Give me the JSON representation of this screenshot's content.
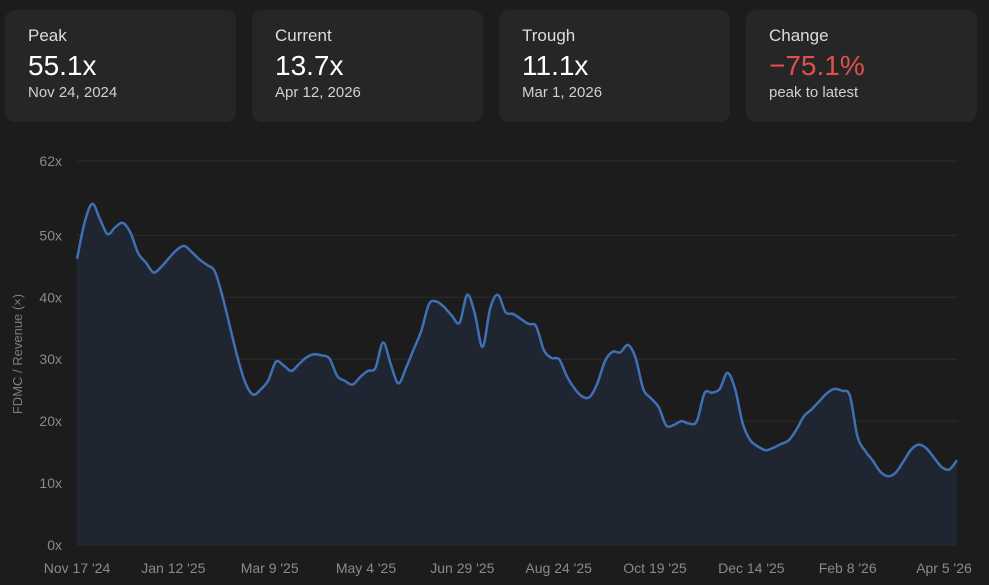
{
  "cards": [
    {
      "label": "Peak",
      "value": "55.1x",
      "sub": "Nov 24, 2024"
    },
    {
      "label": "Current",
      "value": "13.7x",
      "sub": "Apr 12, 2026"
    },
    {
      "label": "Trough",
      "value": "11.1x",
      "sub": "Mar 1, 2026"
    },
    {
      "label": "Change",
      "value": "−75.1%",
      "sub": "peak to latest"
    }
  ],
  "colors": {
    "background": "#1c1c1c",
    "card": "#262626",
    "line": "#3f6fb5",
    "area": "#202631",
    "negative": "#e0514a",
    "grid": "#2c2c2c"
  },
  "chart_data": {
    "type": "area",
    "ylabel": "FDMC / Revenue (×)",
    "ylim": [
      0,
      62
    ],
    "yticks": [
      0,
      10,
      20,
      30,
      40,
      50,
      62
    ],
    "ytick_labels": [
      "0x",
      "10x",
      "20x",
      "30x",
      "40x",
      "50x",
      "62x"
    ],
    "xtick_labels": [
      "Nov 17 '24",
      "Jan 12 '25",
      "Mar 9 '25",
      "May 4 '25",
      "Jun 29 '25",
      "Aug 24 '25",
      "Oct 19 '25",
      "Dec 14 '25",
      "Feb 8 '26",
      "Apr 5 '26"
    ],
    "grid": true,
    "series": [
      {
        "values": [
          46.2,
          52.1,
          55.1,
          52.6,
          50.2,
          51.3,
          52.0,
          50.4,
          47.1,
          45.6,
          44.0,
          44.9,
          46.3,
          47.6,
          48.3,
          47.3,
          46.1,
          45.2,
          44.2,
          40.2,
          35.2,
          30.2,
          26.2,
          24.3,
          25.1,
          26.6,
          29.6,
          29.0,
          28.1,
          29.2,
          30.3,
          30.8,
          30.6,
          30.1,
          27.3,
          26.5,
          25.9,
          27.1,
          28.1,
          28.6,
          32.7,
          29.2,
          26.1,
          28.6,
          31.6,
          34.6,
          38.9,
          39.3,
          38.4,
          37.0,
          35.9,
          40.4,
          37.3,
          32.0,
          38.2,
          40.4,
          37.6,
          37.3,
          36.5,
          35.7,
          35.3,
          31.5,
          30.2,
          30.0,
          27.3,
          25.3,
          24.0,
          23.9,
          26.1,
          29.7,
          31.2,
          31.1,
          32.3,
          30.2,
          25.2,
          23.7,
          22.3,
          19.3,
          19.4,
          20.0,
          19.6,
          20.0,
          24.5,
          24.6,
          25.2,
          27.8,
          25.2,
          19.6,
          16.9,
          15.9,
          15.3,
          15.7,
          16.3,
          16.9,
          18.6,
          20.8,
          21.9,
          23.2,
          24.5,
          25.2,
          24.9,
          24.1,
          17.5,
          15.2,
          13.6,
          11.8,
          11.1,
          11.7,
          13.5,
          15.4,
          16.2,
          15.6,
          14.1,
          12.6,
          12.2,
          13.7
        ]
      }
    ]
  }
}
